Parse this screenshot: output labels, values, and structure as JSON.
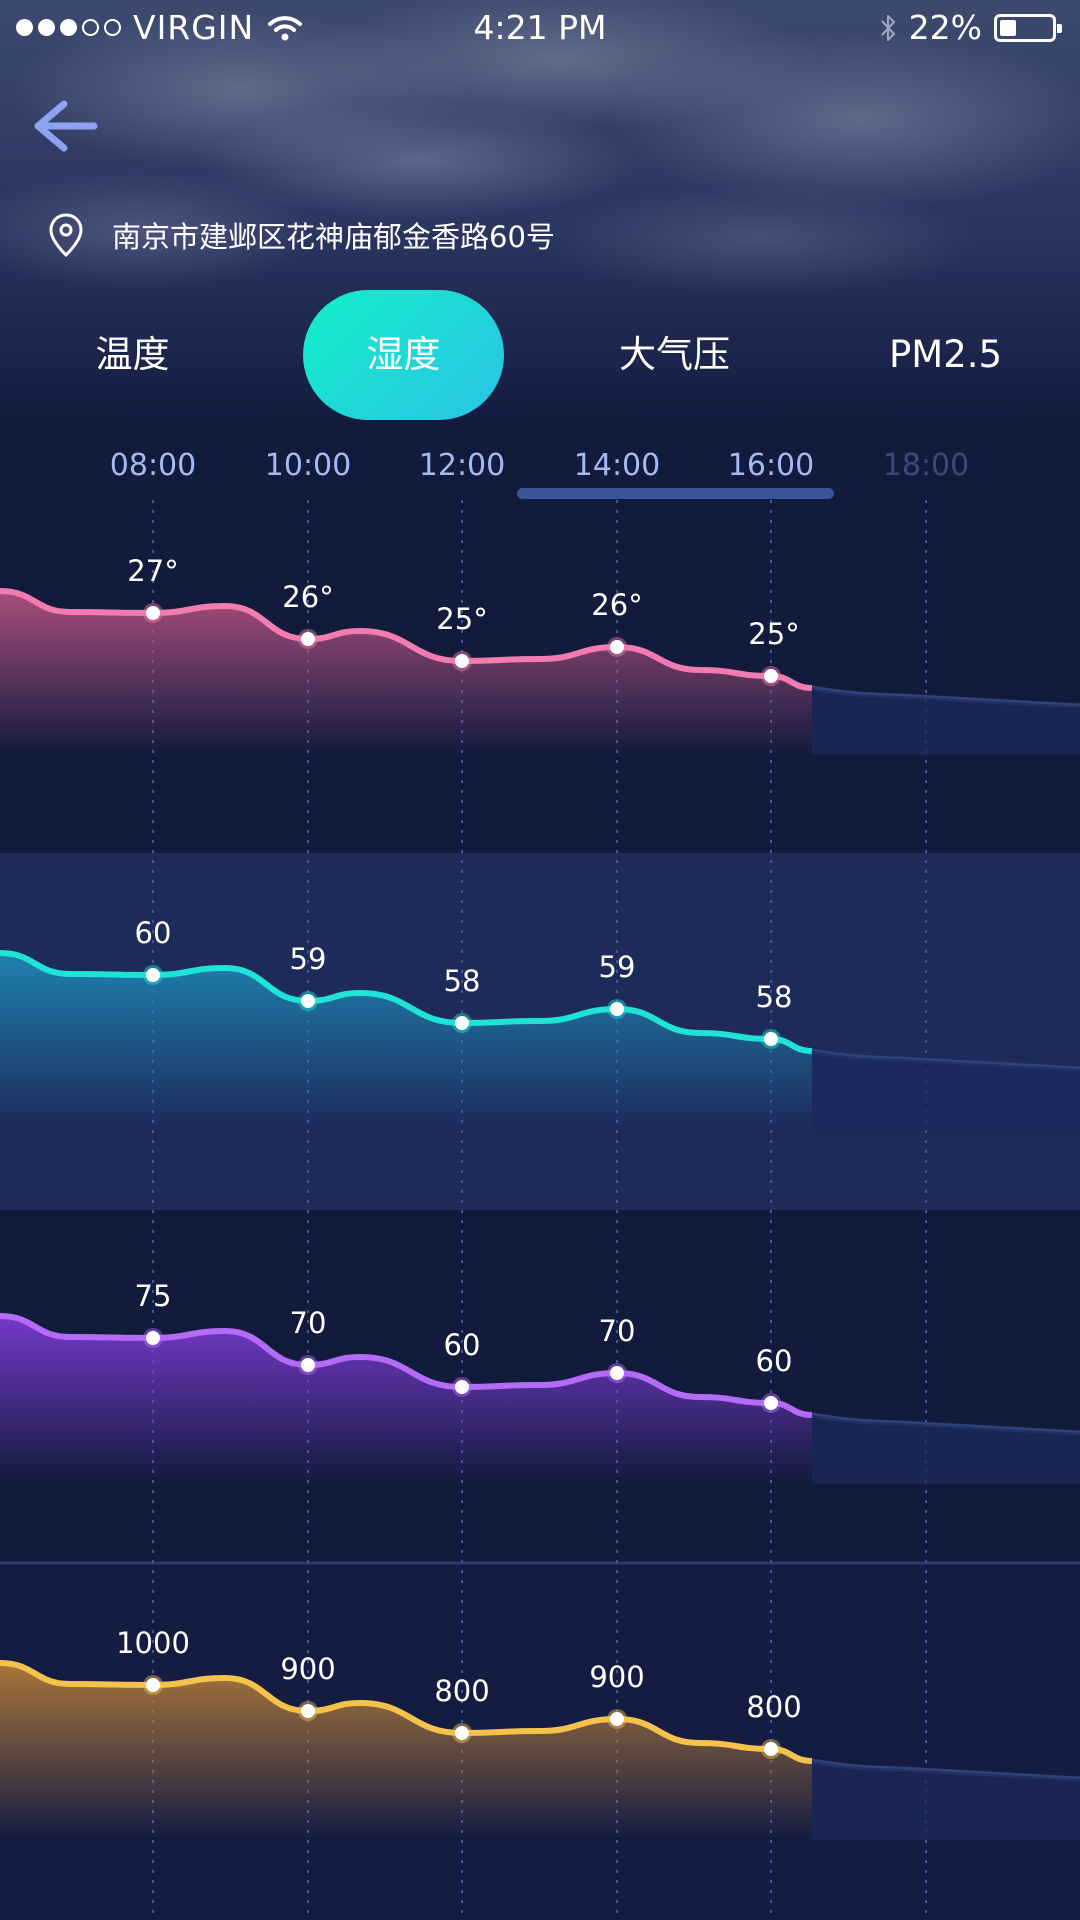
{
  "status_bar": {
    "carrier": "VIRGIN",
    "signal_bars_filled": 3,
    "signal_bars_total": 5,
    "time": "4:21 PM",
    "battery_percent": "22%",
    "battery_level": 0.22
  },
  "header": {
    "back_icon": "back-arrow-icon",
    "location_icon": "map-pin-icon",
    "location": "南京市建邺区花神庙郁金香路60号"
  },
  "tabs": [
    {
      "label": "温度",
      "active": false
    },
    {
      "label": "湿度",
      "active": true
    },
    {
      "label": "大气压",
      "active": false
    },
    {
      "label": "PM2.5",
      "active": false
    }
  ],
  "timeline": {
    "times": [
      "08:00",
      "10:00",
      "12:00",
      "14:00",
      "16:00",
      "18:00"
    ],
    "selected_range": [
      "14:00",
      "16:00"
    ]
  },
  "colors": {
    "background": "#131b3d",
    "temperature": "#f27bb0",
    "humidity": "#1fe3d6",
    "third": "#b46cf8",
    "pressure": "#f5c24c",
    "forecast_line": "#2d4379",
    "time_label": "#a3b9f2",
    "time_label_future": "#3a4a7a",
    "tab_active_start": "#14f0c8",
    "tab_active_end": "#2ac2e6"
  },
  "chart_data": [
    {
      "type": "area",
      "name": "temperature",
      "x": [
        "08:00",
        "10:00",
        "12:00",
        "14:00",
        "16:00"
      ],
      "values": [
        27,
        26,
        25,
        26,
        25
      ],
      "labels": [
        "27°",
        "26°",
        "25°",
        "26°",
        "25°"
      ]
    },
    {
      "type": "area",
      "name": "humidity",
      "x": [
        "08:00",
        "10:00",
        "12:00",
        "14:00",
        "16:00"
      ],
      "values": [
        60,
        59,
        58,
        59,
        58
      ],
      "labels": [
        "60",
        "59",
        "58",
        "59",
        "58"
      ]
    },
    {
      "type": "area",
      "name": "third",
      "x": [
        "08:00",
        "10:00",
        "12:00",
        "14:00",
        "16:00"
      ],
      "values": [
        75,
        70,
        60,
        70,
        60
      ],
      "labels": [
        "75",
        "70",
        "60",
        "70",
        "60"
      ]
    },
    {
      "type": "area",
      "name": "pressure",
      "x": [
        "08:00",
        "10:00",
        "12:00",
        "14:00",
        "16:00"
      ],
      "values": [
        1000,
        900,
        800,
        900,
        800
      ],
      "labels": [
        "1000",
        "900",
        "800",
        "900",
        "800"
      ]
    }
  ]
}
